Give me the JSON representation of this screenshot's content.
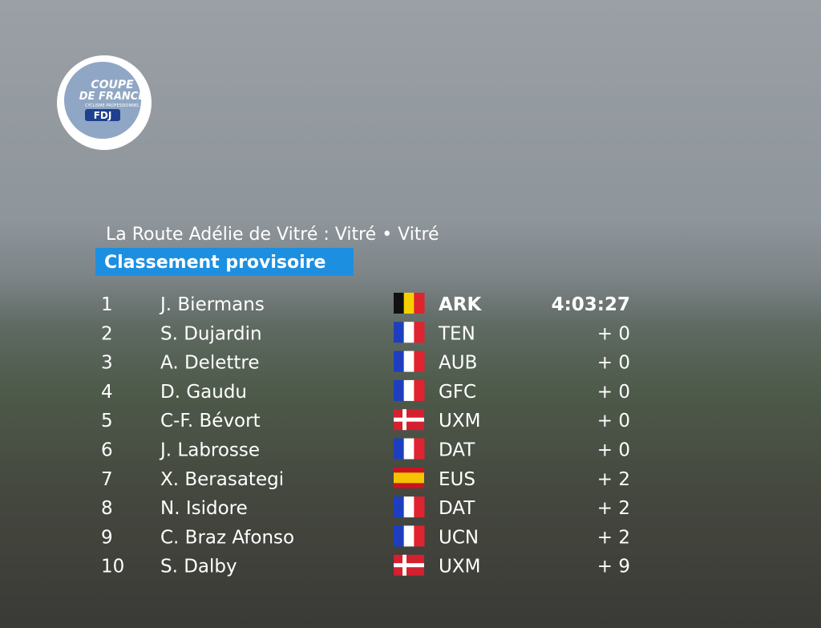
{
  "logo": {
    "line1": "COUPE",
    "line2": "DE FRANCE",
    "line3": "CYCLISME PROFESSIONNEL",
    "sponsor": "FDJ"
  },
  "header": {
    "title": "La Route Adélie de Vitré : Vitré • Vitré",
    "subtitle": "Classement provisoire"
  },
  "table": {
    "rows": [
      [
        1,
        "J. Biermans",
        "ARK",
        "4:03:27"
      ],
      [
        2,
        "S. Dujardin",
        "TEN",
        "+ 0"
      ],
      [
        3,
        "A. Delettre",
        "AUB",
        "+ 0"
      ],
      [
        4,
        "D. Gaudu",
        "GFC",
        "+ 0"
      ],
      [
        5,
        "C-F. Bévort",
        "UXM",
        "+ 0"
      ],
      [
        6,
        "J. Labrosse",
        "DAT",
        "+ 0"
      ],
      [
        7,
        "X. Berasategi",
        "EUS",
        "+ 2"
      ],
      [
        8,
        "N. Isidore",
        "DAT",
        "+ 2"
      ],
      [
        9,
        "C. Braz Afonso",
        "UCN",
        "+ 2"
      ],
      [
        10,
        "S. Dalby",
        "UXM",
        "+ 9"
      ]
    ]
  }
}
